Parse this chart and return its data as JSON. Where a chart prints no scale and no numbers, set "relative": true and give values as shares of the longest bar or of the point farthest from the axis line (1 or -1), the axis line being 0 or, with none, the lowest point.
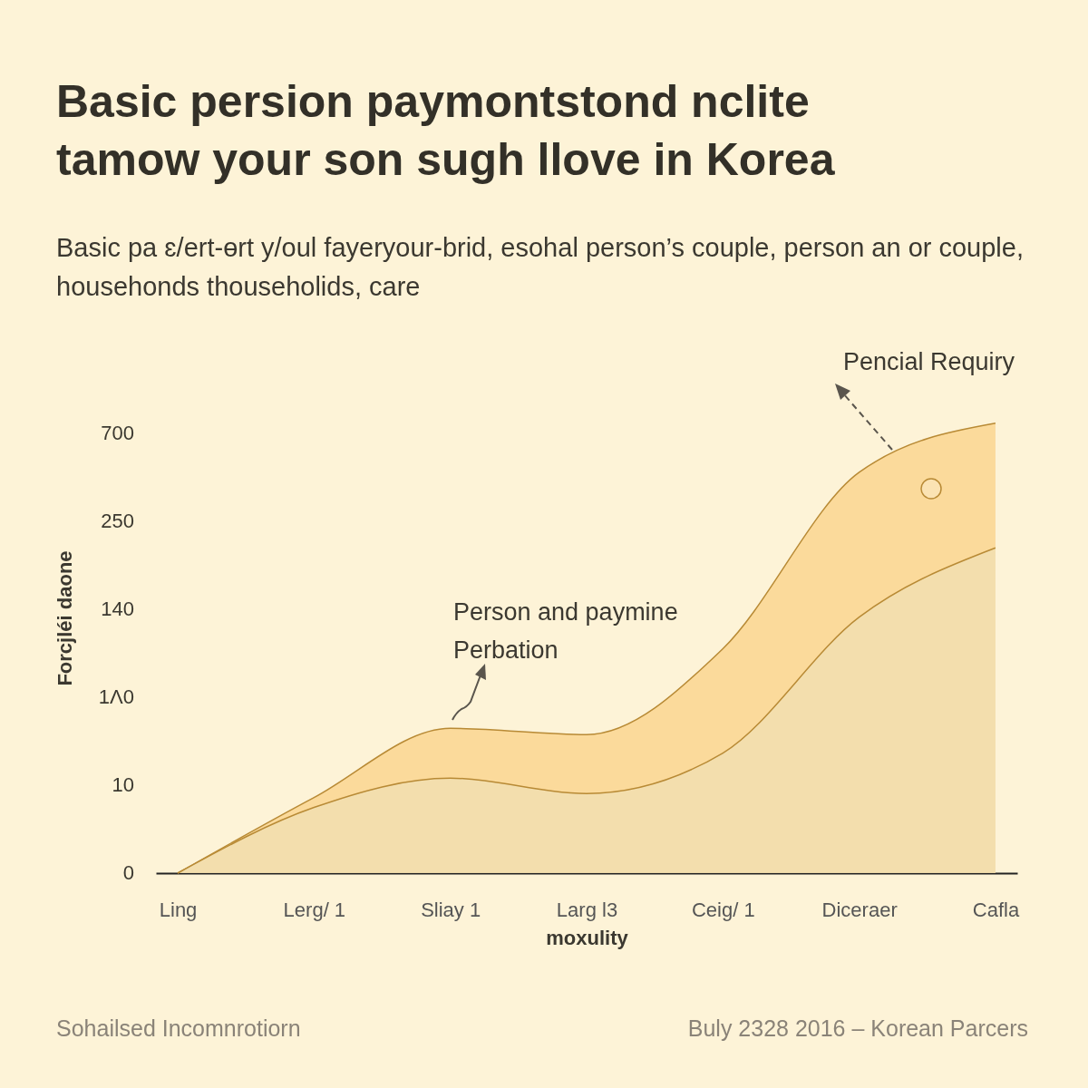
{
  "chart_data": {
    "type": "area",
    "title": "Basic persion paymontstond nclite tamow your son sugh llove in Korea",
    "subtitle": "Basic pa ɛ/ert-ɵrt y/oul fayeryour-brid, esohal person’s couple, person an or couple, househonds thouseholids, care",
    "xlabel": "moxulity",
    "ylabel": "Forcjléi daone",
    "categories": [
      "Ling",
      "Lerg/ 1",
      "Sliay 1",
      "Larg l3",
      "Ceig/ 1",
      "Diceraer",
      "Cafla"
    ],
    "relative": true,
    "series": [
      {
        "color": "#f9cf82",
        "values": [
          0,
          0.168,
          0.322,
          0.308,
          0.499,
          0.891,
          1
        ]
      },
      {
        "color": "#f0dfb5",
        "values": [
          0,
          0.146,
          0.211,
          0.177,
          0.267,
          0.569,
          0.723
        ]
      }
    ],
    "annotations": [
      "Person and paymine\nPerbation",
      "Pencial Requiry",
      "Sohailsed Incomnrotiorn",
      "Buly 2328 2016 – Korean Parcers",
      "0",
      "10",
      "1Λ0",
      "140",
      "250",
      "700"
    ]
  }
}
